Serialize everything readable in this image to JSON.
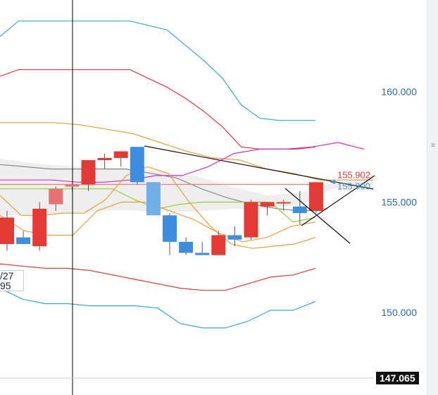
{
  "chart_data": {
    "type": "candlestick",
    "y_axis": {
      "ticks": [
        160.0,
        155.0,
        150.0
      ],
      "tick_labels": [
        "160.000",
        "155.000",
        "150.000"
      ],
      "ylim": [
        146.4,
        164.1
      ],
      "side": "right"
    },
    "candles": [
      {
        "o": 154.3,
        "h": 154.6,
        "l": 152.8,
        "c": 153.1,
        "color": "#e53935"
      },
      {
        "o": 153.4,
        "h": 153.7,
        "l": 153.1,
        "c": 153.1,
        "color": "#3e8ee0"
      },
      {
        "o": 153.0,
        "h": 155.0,
        "l": 152.8,
        "c": 154.7,
        "color": "#e53935"
      },
      {
        "o": 154.9,
        "h": 155.7,
        "l": 154.6,
        "c": 155.6,
        "color": "#e57373"
      },
      {
        "o": 155.7,
        "h": 155.8,
        "l": 155.5,
        "c": 155.8,
        "color": "#e57373"
      },
      {
        "o": 155.8,
        "h": 156.9,
        "l": 155.5,
        "c": 156.9,
        "color": "#e53935"
      },
      {
        "o": 156.9,
        "h": 157.2,
        "l": 156.5,
        "c": 157.0,
        "color": "#e53935"
      },
      {
        "o": 157.0,
        "h": 157.3,
        "l": 156.6,
        "c": 157.3,
        "color": "#e53935"
      },
      {
        "o": 157.5,
        "h": 157.5,
        "l": 155.8,
        "c": 155.9,
        "color": "#3e8ee0"
      },
      {
        "o": 155.9,
        "h": 155.9,
        "l": 154.5,
        "c": 154.4,
        "color": "#72aee8"
      },
      {
        "o": 154.4,
        "h": 154.5,
        "l": 152.6,
        "c": 153.2,
        "color": "#3e8ee0"
      },
      {
        "o": 153.2,
        "h": 153.4,
        "l": 152.6,
        "c": 152.7,
        "color": "#3e8ee0"
      },
      {
        "o": 152.7,
        "h": 153.2,
        "l": 152.6,
        "c": 152.6,
        "color": "#3e8ee0"
      },
      {
        "o": 152.6,
        "h": 153.7,
        "l": 152.6,
        "c": 153.5,
        "color": "#e53935"
      },
      {
        "o": 153.5,
        "h": 153.9,
        "l": 153.0,
        "c": 153.3,
        "color": "#3e8ee0"
      },
      {
        "o": 153.4,
        "h": 155.1,
        "l": 153.3,
        "c": 155.0,
        "color": "#e53935"
      },
      {
        "o": 154.8,
        "h": 155.0,
        "l": 154.4,
        "c": 155.0,
        "color": "#e53935"
      },
      {
        "o": 155.0,
        "h": 155.1,
        "l": 154.6,
        "c": 155.0,
        "color": "#e53935"
      },
      {
        "o": 154.8,
        "h": 155.5,
        "l": 154.0,
        "c": 154.5,
        "color": "#3e8ee0"
      },
      {
        "o": 154.6,
        "h": 155.9,
        "l": 154.5,
        "c": 155.9,
        "color": "#e53935"
      }
    ],
    "indicators": [
      {
        "color": "#3aa6dd",
        "y": [
          162.5,
          163.2,
          163.2,
          163.2,
          163.2,
          163.2,
          163.2,
          163.2,
          163.0,
          162.8,
          162.1,
          161.4,
          160.6,
          159.4,
          158.8,
          158.7,
          158.7,
          158.7
        ]
      },
      {
        "color": "#e53935",
        "y": [
          160.7,
          161.0,
          161.0,
          161.0,
          161.0,
          161.0,
          161.0,
          161.0,
          160.6,
          160.2,
          159.7,
          159.1,
          158.4,
          157.5,
          157.4,
          157.4,
          157.4,
          157.5
        ]
      },
      {
        "color": "#e8a13a",
        "y": [
          158.6,
          158.6,
          158.6,
          158.5,
          158.3,
          158.1,
          157.7,
          157.3,
          157.0,
          156.9,
          156.5,
          156.3,
          156.0,
          156.0,
          156.0
        ]
      },
      {
        "color": "#8a8a8a",
        "y": [
          156.7,
          156.6,
          156.5,
          156.5,
          156.5,
          156.5,
          156.3,
          156.1,
          155.6,
          155.2,
          154.9,
          154.7,
          154.6,
          154.7
        ]
      },
      {
        "color": "#cc33cc",
        "y": [
          156.0,
          156.0,
          156.0,
          155.9,
          155.9,
          156.0,
          156.2,
          156.2,
          156.6,
          157.2,
          157.4,
          157.4,
          157.5,
          157.7,
          157.4
        ]
      },
      {
        "color": "#f08080",
        "y": [
          155.8,
          155.8,
          155.8,
          155.8,
          155.8,
          155.8,
          155.8,
          155.8,
          155.8,
          155.8,
          155.8
        ]
      },
      {
        "color": "#9acd32",
        "y": [
          155.6,
          155.6,
          155.6,
          155.6,
          155.6,
          155.6,
          155.1,
          154.7,
          154.9,
          155.0,
          155.0,
          155.0,
          155.0,
          154.1,
          154.3
        ]
      },
      {
        "color": "#e8a13a",
        "y": [
          155.3,
          154.4,
          154.4,
          154.5,
          154.5,
          155.1,
          156.2,
          156.6,
          156.3,
          155.0,
          153.9,
          153.1,
          152.9,
          153.0,
          153.1,
          153.4
        ]
      },
      {
        "color": "#e8a13a",
        "y": [
          154.4,
          153.7,
          153.5,
          153.5,
          154.6,
          155.0,
          155.0,
          154.6,
          154.2,
          153.6,
          153.2,
          153.4,
          153.9,
          154.1
        ]
      },
      {
        "color": "#e53935",
        "y": [
          152.2,
          152.1,
          152.0,
          152.0,
          151.9,
          151.7,
          151.5,
          151.3,
          151.1,
          151.0,
          151.0,
          151.3,
          151.6,
          151.7,
          152.0
        ]
      },
      {
        "color": "#3aa6dd",
        "y": [
          151.1,
          150.6,
          150.4,
          150.4,
          150.3,
          150.3,
          150.3,
          150.2,
          149.5,
          149.3,
          149.3,
          149.6,
          150.1,
          150.1,
          150.5
        ]
      }
    ],
    "price_labels": [
      {
        "text": "155.902",
        "value": 155.902,
        "color": "#e53935"
      },
      {
        "text": "155.900",
        "value": 155.9,
        "color": "#3e8ee0"
      }
    ],
    "cursor": {
      "price": "147.065",
      "box_line1": "/27",
      "box_line2": "95"
    }
  }
}
